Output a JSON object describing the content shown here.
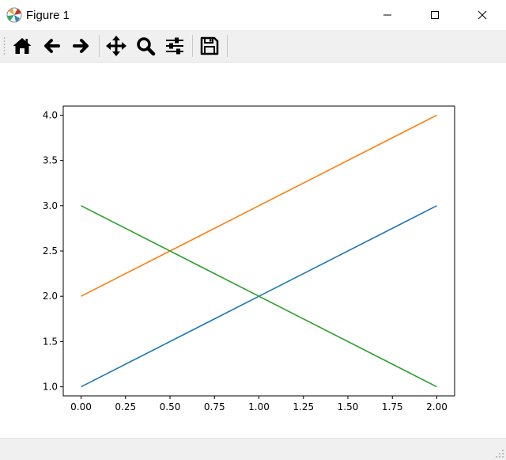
{
  "window": {
    "title": "Figure 1",
    "minimize_icon": "minimize-icon",
    "maximize_icon": "maximize-icon",
    "close_icon": "close-icon"
  },
  "toolbar": {
    "tools": [
      {
        "name": "home-button",
        "icon": "home-icon"
      },
      {
        "name": "back-button",
        "icon": "arrow-left-icon"
      },
      {
        "name": "forward-button",
        "icon": "arrow-right-icon"
      },
      {
        "name": "pan-button",
        "icon": "move-icon"
      },
      {
        "name": "zoom-button",
        "icon": "magnifier-icon"
      },
      {
        "name": "configure-subplots-button",
        "icon": "sliders-icon"
      },
      {
        "name": "save-button",
        "icon": "floppy-disk-icon"
      }
    ]
  },
  "statusbar": {
    "message": ""
  },
  "chart_data": {
    "type": "line",
    "title": "",
    "xlabel": "",
    "ylabel": "",
    "xlim": [
      -0.1,
      2.1
    ],
    "ylim": [
      0.9,
      4.1
    ],
    "xticks": [
      0.0,
      0.25,
      0.5,
      0.75,
      1.0,
      1.25,
      1.5,
      1.75,
      2.0
    ],
    "xtick_labels": [
      "0.00",
      "0.25",
      "0.50",
      "0.75",
      "1.00",
      "1.25",
      "1.50",
      "1.75",
      "2.00"
    ],
    "yticks": [
      1.0,
      1.5,
      2.0,
      2.5,
      3.0,
      3.5,
      4.0
    ],
    "ytick_labels": [
      "1.0",
      "1.5",
      "2.0",
      "2.5",
      "3.0",
      "3.5",
      "4.0"
    ],
    "grid": false,
    "legend": "none",
    "series": [
      {
        "color": "#1f77b4",
        "x": [
          0,
          1,
          2
        ],
        "y": [
          1,
          2,
          3
        ]
      },
      {
        "color": "#ff7f0e",
        "x": [
          0,
          1,
          2
        ],
        "y": [
          2,
          3,
          4
        ]
      },
      {
        "color": "#2ca02c",
        "x": [
          0,
          1,
          2
        ],
        "y": [
          3,
          2,
          1
        ]
      }
    ]
  }
}
